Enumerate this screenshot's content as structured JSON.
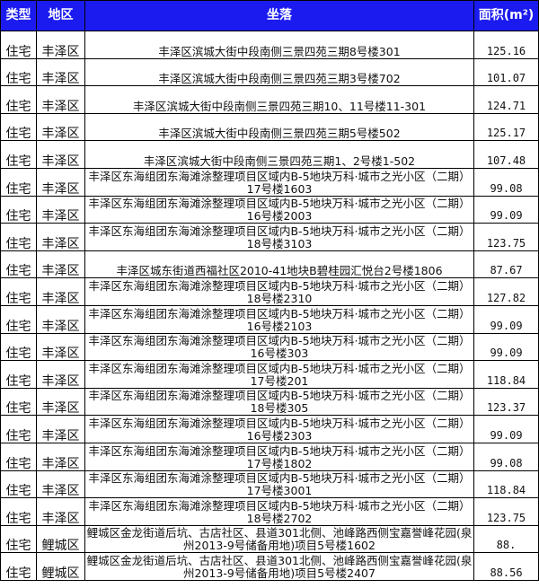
{
  "headers": {
    "type": "类型",
    "district": "地区",
    "address": "坐落",
    "area": "面积(m²)"
  },
  "rows": [
    {
      "type": "住宅",
      "district": "丰泽区",
      "address": "丰泽区滨城大街中段南侧三景四苑三期8号楼301",
      "area": "125.16"
    },
    {
      "type": "住宅",
      "district": "丰泽区",
      "address": "丰泽区滨城大街中段南侧三景四苑三期3号楼702",
      "area": "101.07"
    },
    {
      "type": "住宅",
      "district": "丰泽区",
      "address": "丰泽区滨城大街中段南侧三景四苑三期10、11号楼11-301",
      "area": "124.71"
    },
    {
      "type": "住宅",
      "district": "丰泽区",
      "address": "丰泽区滨城大街中段南侧三景四苑三期5号楼502",
      "area": "125.17"
    },
    {
      "type": "住宅",
      "district": "丰泽区",
      "address": "丰泽区滨城大街中段南侧三景四苑三期1、2号楼1-502",
      "area": "107.48"
    },
    {
      "type": "住宅",
      "district": "丰泽区",
      "address": "丰泽区东海组团东海滩涂整理项目区域内B-5地块万科·城市之光小区（二期）17号楼1603",
      "area": "99.08"
    },
    {
      "type": "住宅",
      "district": "丰泽区",
      "address": "丰泽区东海组团东海滩涂整理项目区域内B-5地块万科·城市之光小区（二期）16号楼2003",
      "area": "99.09"
    },
    {
      "type": "住宅",
      "district": "丰泽区",
      "address": "丰泽区东海组团东海滩涂整理项目区域内B-5地块万科·城市之光小区（二期）18号楼3103",
      "area": "123.75"
    },
    {
      "type": "住宅",
      "district": "丰泽区",
      "address": "丰泽区城东街道西福社区2010-41地块B碧桂园汇悦台2号楼1806",
      "area": "87.67"
    },
    {
      "type": "住宅",
      "district": "丰泽区",
      "address": "丰泽区东海组团东海滩涂整理项目区域内B-5地块万科·城市之光小区（二期）18号楼2310",
      "area": "127.82"
    },
    {
      "type": "住宅",
      "district": "丰泽区",
      "address": "丰泽区东海组团东海滩涂整理项目区域内B-5地块万科·城市之光小区（二期）16号楼2103",
      "area": "99.09"
    },
    {
      "type": "住宅",
      "district": "丰泽区",
      "address": "丰泽区东海组团东海滩涂整理项目区域内B-5地块万科·城市之光小区（二期）16号楼303",
      "area": "99.09"
    },
    {
      "type": "住宅",
      "district": "丰泽区",
      "address": "丰泽区东海组团东海滩涂整理项目区域内B-5地块万科·城市之光小区（二期）17号楼201",
      "area": "118.84"
    },
    {
      "type": "住宅",
      "district": "丰泽区",
      "address": "丰泽区东海组团东海滩涂整理项目区域内B-5地块万科·城市之光小区（二期）18号楼305",
      "area": "123.37"
    },
    {
      "type": "住宅",
      "district": "丰泽区",
      "address": "丰泽区东海组团东海滩涂整理项目区域内B-5地块万科·城市之光小区（二期）16号楼2303",
      "area": "99.09"
    },
    {
      "type": "住宅",
      "district": "丰泽区",
      "address": "丰泽区东海组团东海滩涂整理项目区域内B-5地块万科·城市之光小区（二期）17号楼1802",
      "area": "99.08"
    },
    {
      "type": "住宅",
      "district": "丰泽区",
      "address": "丰泽区东海组团东海滩涂整理项目区域内B-5地块万科·城市之光小区（二期）17号楼3001",
      "area": "118.84"
    },
    {
      "type": "住宅",
      "district": "丰泽区",
      "address": "丰泽区东海组团东海滩涂整理项目区域内B-5地块万科·城市之光小区（二期）18号楼2702",
      "area": "123.75"
    },
    {
      "type": "住宅",
      "district": "鲤城区",
      "address": "鲤城区金龙街道后坑、古店社区、县道301北侧、池峰路西侧宝嘉誉峰花园(泉州2013-9号储备用地)项目5号楼1602",
      "area": "88."
    },
    {
      "type": "住宅",
      "district": "鲤城区",
      "address": "鲤城区金龙街道后坑、古店社区、县道301北侧、池峰路西侧宝嘉誉峰花园(泉州2013-9号储备用地)项目5号楼2407",
      "area": "88.56"
    }
  ],
  "colors": {
    "header_bg": "#1b1bf0",
    "header_text": "#ffffff"
  }
}
